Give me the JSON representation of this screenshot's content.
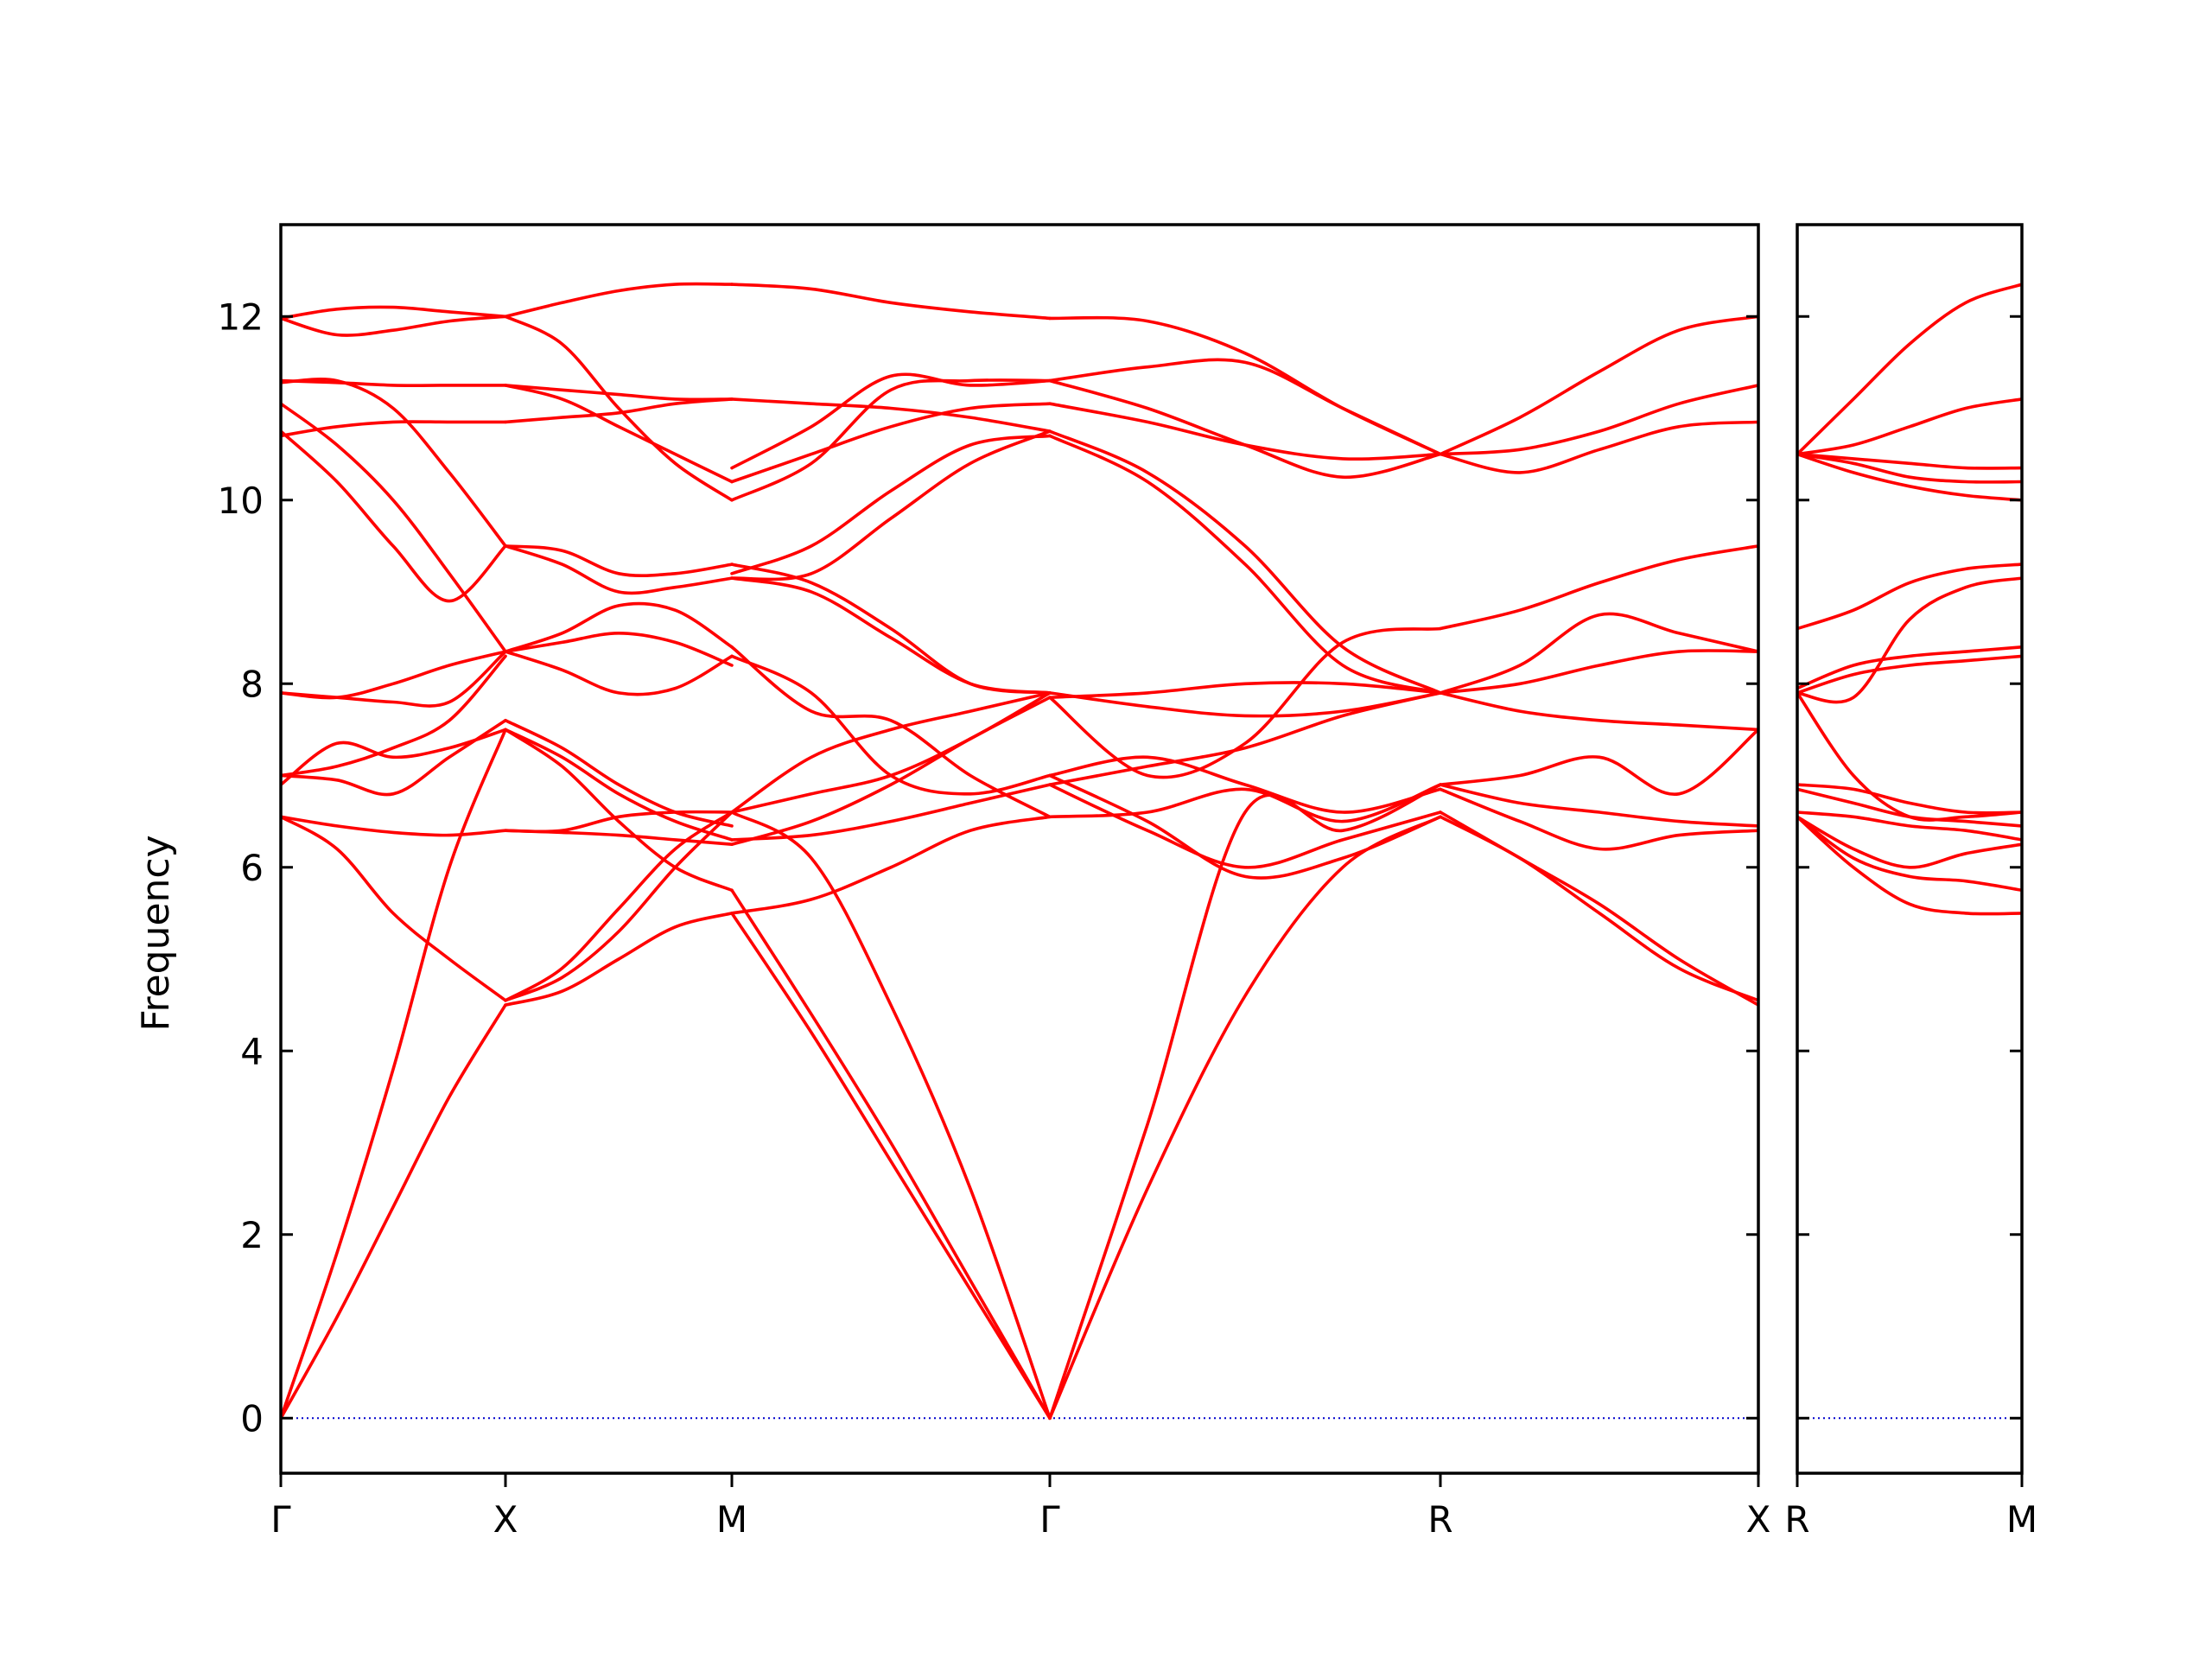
{
  "chart_data": {
    "type": "line",
    "ylabel": "Frequency",
    "ylim": [
      -0.6,
      13.0
    ],
    "yticks": [
      0,
      2,
      4,
      6,
      8,
      10,
      12
    ],
    "grid": false,
    "band_color": "#ff0000",
    "zero_line_color": "#0000cc",
    "panels": [
      {
        "xlabels": [
          "Γ",
          "X",
          "M",
          "Γ",
          "R",
          "X"
        ],
        "segments": [
          {
            "from": "Γ",
            "to": "X",
            "bands": [
              [
                0.0,
                1.1,
                2.3,
                3.5,
                4.5
              ],
              [
                0.0,
                1.8,
                3.8,
                6.0,
                7.5
              ],
              [
                6.55,
                6.45,
                6.38,
                6.35,
                6.4
              ],
              [
                6.55,
                6.2,
                5.5,
                5.0,
                4.55
              ],
              [
                7.0,
                6.95,
                6.8,
                7.2,
                7.6
              ],
              [
                6.9,
                7.35,
                7.2,
                7.3,
                7.5
              ],
              [
                7.0,
                7.1,
                7.3,
                7.6,
                8.3
              ],
              [
                7.9,
                7.85,
                8.0,
                8.2,
                8.35
              ],
              [
                7.9,
                7.85,
                7.8,
                7.8,
                8.35
              ],
              [
                10.75,
                10.2,
                9.5,
                8.9,
                9.5
              ],
              [
                11.05,
                10.6,
                10.0,
                9.2,
                8.35
              ],
              [
                10.7,
                10.8,
                10.85,
                10.85,
                10.85
              ],
              [
                11.3,
                11.28,
                11.25,
                11.25,
                11.25
              ],
              [
                11.28,
                11.3,
                11.0,
                10.3,
                9.5
              ],
              [
                11.98,
                11.8,
                11.85,
                11.95,
                12.0
              ],
              [
                11.98,
                12.08,
                12.1,
                12.05,
                12.0
              ]
            ]
          },
          {
            "from": "X",
            "to": "M",
            "bands": [
              [
                4.5,
                4.65,
                5.0,
                5.35,
                5.5
              ],
              [
                4.55,
                4.8,
                5.3,
                6.0,
                6.6
              ],
              [
                4.55,
                4.9,
                5.55,
                6.2,
                6.6
              ],
              [
                6.4,
                6.38,
                6.35,
                6.3,
                6.25
              ],
              [
                6.4,
                6.4,
                6.55,
                6.6,
                6.6
              ],
              [
                7.5,
                7.2,
                6.8,
                6.5,
                6.3
              ],
              [
                7.5,
                7.1,
                6.5,
                6.0,
                5.75
              ],
              [
                7.6,
                7.3,
                6.9,
                6.6,
                6.45
              ],
              [
                8.35,
                8.45,
                8.55,
                8.45,
                8.2
              ],
              [
                8.35,
                8.15,
                7.9,
                7.95,
                8.3
              ],
              [
                8.35,
                8.55,
                8.85,
                8.8,
                8.4
              ],
              [
                9.5,
                9.45,
                9.2,
                9.2,
                9.3
              ],
              [
                9.5,
                9.3,
                9.0,
                9.05,
                9.15
              ],
              [
                10.85,
                10.9,
                10.95,
                11.05,
                11.1
              ],
              [
                11.25,
                11.2,
                11.15,
                11.1,
                11.1
              ],
              [
                11.25,
                11.1,
                10.8,
                10.5,
                10.2
              ],
              [
                12.0,
                11.7,
                11.0,
                10.4,
                10.0
              ],
              [
                12.0,
                12.15,
                12.28,
                12.35,
                12.35
              ]
            ]
          },
          {
            "from": "M",
            "to": "Γ",
            "bands": [
              [
                5.5,
                4.2,
                2.8,
                1.4,
                0.0
              ],
              [
                5.75,
                4.4,
                3.0,
                1.5,
                0.0
              ],
              [
                6.6,
                6.1,
                4.5,
                2.5,
                0.0
              ],
              [
                5.5,
                5.65,
                6.0,
                6.4,
                6.55
              ],
              [
                6.3,
                6.35,
                6.5,
                6.7,
                6.9
              ],
              [
                6.6,
                7.2,
                7.5,
                7.7,
                7.9
              ],
              [
                6.25,
                6.5,
                6.9,
                7.4,
                7.85
              ],
              [
                6.6,
                6.8,
                7.0,
                7.4,
                7.9
              ],
              [
                8.3,
                7.9,
                7.0,
                6.8,
                7.0
              ],
              [
                8.4,
                7.7,
                7.6,
                7.0,
                6.55
              ],
              [
                9.15,
                9.0,
                8.5,
                8.0,
                7.9
              ],
              [
                9.3,
                9.1,
                8.6,
                8.0,
                7.9
              ],
              [
                9.2,
                9.5,
                10.1,
                10.6,
                10.7
              ],
              [
                9.15,
                9.2,
                9.8,
                10.4,
                10.75
              ],
              [
                10.2,
                10.5,
                10.8,
                11.0,
                11.05
              ],
              [
                10.0,
                10.4,
                11.2,
                11.3,
                11.3
              ],
              [
                11.1,
                11.05,
                11.0,
                10.9,
                10.75
              ],
              [
                10.35,
                10.8,
                11.35,
                11.25,
                11.3
              ],
              [
                12.35,
                12.3,
                12.15,
                12.05,
                11.98
              ]
            ]
          },
          {
            "from": "Γ",
            "to": "R",
            "bands": [
              [
                0.0,
                2.5,
                4.6,
                6.0,
                6.55
              ],
              [
                0.0,
                3.2,
                6.6,
                6.4,
                6.9
              ],
              [
                6.55,
                6.6,
                6.85,
                6.5,
                6.9
              ],
              [
                6.9,
                6.4,
                6.0,
                6.3,
                6.6
              ],
              [
                7.0,
                6.5,
                5.9,
                6.1,
                6.55
              ],
              [
                7.0,
                7.2,
                6.9,
                6.6,
                6.85
              ],
              [
                6.9,
                7.1,
                7.3,
                7.65,
                7.9
              ],
              [
                7.9,
                7.75,
                7.65,
                7.7,
                7.9
              ],
              [
                7.85,
                7.9,
                8.0,
                8.0,
                7.9
              ],
              [
                7.85,
                7.0,
                7.35,
                8.45,
                8.6
              ],
              [
                10.75,
                10.3,
                9.5,
                8.4,
                7.9
              ],
              [
                10.7,
                10.2,
                9.3,
                8.2,
                7.9
              ],
              [
                11.05,
                10.85,
                10.6,
                10.45,
                10.5
              ],
              [
                11.3,
                11.0,
                10.6,
                10.25,
                10.5
              ],
              [
                11.3,
                11.45,
                11.5,
                11.0,
                10.5
              ],
              [
                11.98,
                11.95,
                11.6,
                11.0,
                10.5
              ]
            ]
          },
          {
            "from": "R",
            "to": "X",
            "bands": [
              [
                6.55,
                6.1,
                5.5,
                4.9,
                4.55
              ],
              [
                6.6,
                6.1,
                5.6,
                5.0,
                4.5
              ],
              [
                6.85,
                6.5,
                6.2,
                6.35,
                6.4
              ],
              [
                6.9,
                6.7,
                6.6,
                6.5,
                6.45
              ],
              [
                6.9,
                7.0,
                7.2,
                6.8,
                7.5
              ],
              [
                7.9,
                8.2,
                8.75,
                8.55,
                8.35
              ],
              [
                7.9,
                7.7,
                7.6,
                7.55,
                7.5
              ],
              [
                7.9,
                8.0,
                8.2,
                8.35,
                8.35
              ],
              [
                8.6,
                8.8,
                9.1,
                9.35,
                9.5
              ],
              [
                10.5,
                10.3,
                10.55,
                10.8,
                10.85
              ],
              [
                10.5,
                10.55,
                10.75,
                11.05,
                11.25
              ],
              [
                10.5,
                10.9,
                11.4,
                11.85,
                12.0
              ]
            ]
          }
        ]
      },
      {
        "xlabels": [
          "R",
          "M"
        ],
        "segments": [
          {
            "from": "R",
            "to": "M",
            "bands": [
              [
                6.55,
                6.0,
                5.6,
                5.5,
                5.5
              ],
              [
                6.55,
                6.1,
                5.9,
                5.85,
                5.75
              ],
              [
                6.55,
                6.2,
                6.0,
                6.15,
                6.25
              ],
              [
                6.6,
                6.55,
                6.45,
                6.4,
                6.3
              ],
              [
                6.85,
                6.7,
                6.55,
                6.5,
                6.45
              ],
              [
                6.9,
                6.85,
                6.7,
                6.6,
                6.6
              ],
              [
                7.9,
                7.0,
                6.55,
                6.55,
                6.6
              ],
              [
                7.9,
                8.1,
                8.2,
                8.25,
                8.3
              ],
              [
                7.95,
                8.2,
                8.3,
                8.35,
                8.4
              ],
              [
                7.9,
                7.85,
                8.7,
                9.05,
                9.15
              ],
              [
                8.6,
                8.8,
                9.1,
                9.25,
                9.3
              ],
              [
                10.5,
                10.3,
                10.15,
                10.05,
                10.0
              ],
              [
                10.5,
                10.4,
                10.25,
                10.2,
                10.2
              ],
              [
                10.5,
                10.45,
                10.4,
                10.35,
                10.35
              ],
              [
                10.5,
                10.6,
                10.8,
                11.0,
                11.1
              ],
              [
                10.5,
                11.1,
                11.7,
                12.15,
                12.35
              ]
            ]
          }
        ]
      }
    ]
  }
}
